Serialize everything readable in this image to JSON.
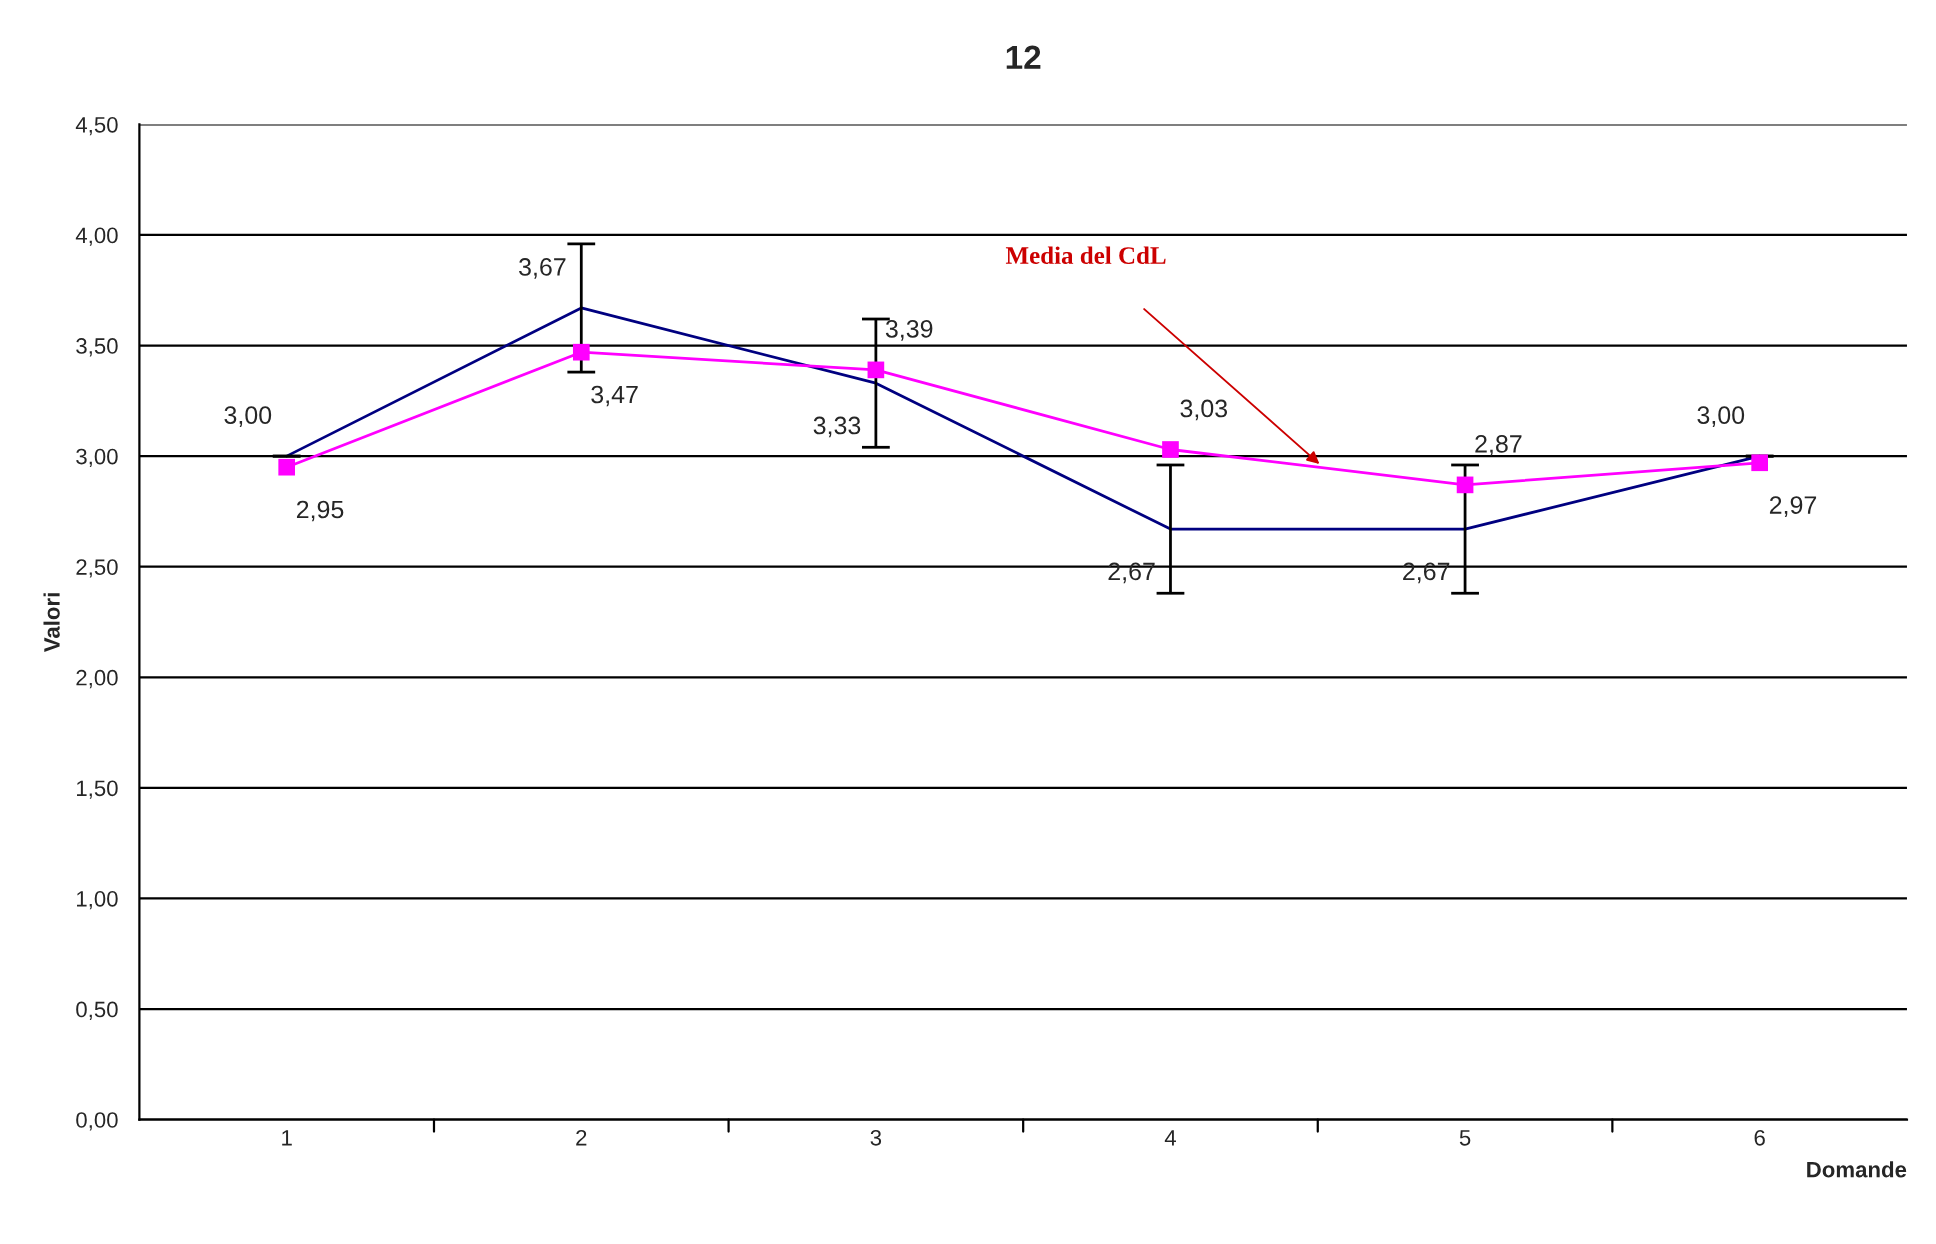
{
  "chart_data": {
    "type": "line",
    "title": "12",
    "xlabel": "Domande",
    "ylabel": "Valori",
    "categories": [
      "1",
      "2",
      "3",
      "4",
      "5",
      "6"
    ],
    "series": [
      {
        "color": "#000080",
        "marker": "none",
        "values": [
          3.0,
          3.67,
          3.33,
          2.67,
          2.67,
          3.0
        ],
        "errors": [
          0,
          0.29,
          0.29,
          0.29,
          0.29,
          0
        ],
        "value_labels": [
          "3,00",
          "3,67",
          "3,33",
          "2,67",
          "2,67",
          "3,00"
        ]
      },
      {
        "color": "#ff00ff",
        "marker": "square",
        "values": [
          2.95,
          3.47,
          3.39,
          3.03,
          2.87,
          2.97
        ],
        "value_labels": [
          "2,95",
          "3,47",
          "3,39",
          "3,03",
          "2,87",
          "2,97"
        ]
      }
    ],
    "ylim": [
      0,
      4.5
    ],
    "yticks": [
      {
        "value": 0,
        "label": "0,00"
      },
      {
        "value": 0.5,
        "label": "0,50"
      },
      {
        "value": 1,
        "label": "1,00"
      },
      {
        "value": 1.5,
        "label": "1,50"
      },
      {
        "value": 2,
        "label": "2,00"
      },
      {
        "value": 2.5,
        "label": "2,50"
      },
      {
        "value": 3,
        "label": "3,00"
      },
      {
        "value": 3.5,
        "label": "3,50"
      },
      {
        "value": 4,
        "label": "4,00"
      },
      {
        "value": 4.5,
        "label": "4,50"
      }
    ],
    "grid": "y",
    "annotations": [
      "Media del CdL"
    ]
  }
}
